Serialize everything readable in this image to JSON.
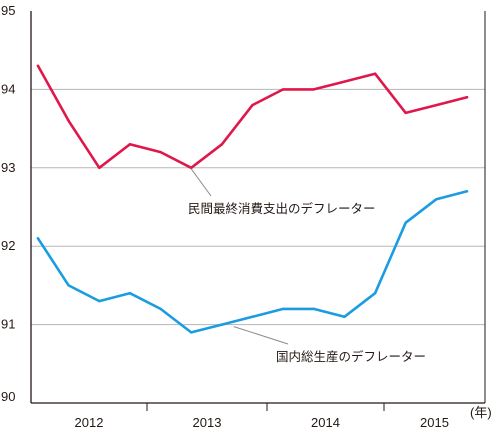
{
  "chart_data": {
    "type": "line",
    "x_unit_label": "(年)",
    "x_tick_labels": [
      "2012",
      "2013",
      "2014",
      "2015"
    ],
    "y_tick_labels": [
      "90",
      "91",
      "92",
      "93",
      "94",
      "95"
    ],
    "ylim": [
      90,
      95
    ],
    "grid": "horizontal",
    "series": [
      {
        "name": "民間最終消費支出のデフレーター",
        "color": "#e0174b",
        "values": [
          94.3,
          93.6,
          93.0,
          93.3,
          93.2,
          93.0,
          93.3,
          93.8,
          94.0,
          94.0,
          94.1,
          94.2,
          93.7,
          93.8,
          93.9
        ]
      },
      {
        "name": "国内総生産のデフレーター",
        "color": "#1a9de0",
        "values": [
          92.1,
          91.5,
          91.3,
          91.4,
          91.2,
          90.9,
          91.0,
          91.1,
          91.2,
          91.2,
          91.1,
          91.4,
          92.3,
          92.6,
          92.7
        ]
      }
    ]
  }
}
